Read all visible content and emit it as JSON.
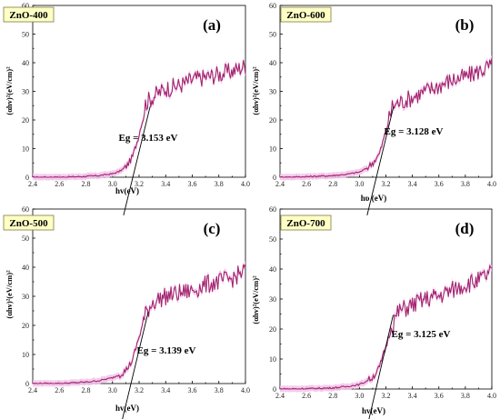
{
  "colors": {
    "curve": "#a3236f",
    "band": "#f2c3ea",
    "label_bg": "#ffffc6",
    "tangent": "#000000"
  },
  "chart_data": [
    {
      "type": "line",
      "panel": "(a)",
      "sample_label": "ZnO-400",
      "xlabel": "hv(eV)",
      "ylabel": "(αhv)²(eV/cm)²",
      "annotation": "Eg = 3.153 eV",
      "eg": 3.153,
      "xlim": [
        2.4,
        4.0
      ],
      "ylim": [
        0,
        60
      ],
      "xticks": [
        "2.4",
        "2.6",
        "2.8",
        "3.0",
        "3.2",
        "3.4",
        "3.6",
        "3.8",
        "4.0"
      ],
      "yticks": [
        "0",
        "10",
        "20",
        "30",
        "40",
        "50",
        "60"
      ],
      "x": [
        2.4,
        2.6,
        2.8,
        2.9,
        3.0,
        3.05,
        3.1,
        3.15,
        3.2,
        3.25,
        3.3,
        3.4,
        3.5,
        3.6,
        3.7,
        3.8,
        3.9,
        4.0
      ],
      "y": [
        0,
        0,
        0.3,
        0.6,
        1.2,
        2,
        3.5,
        7,
        15,
        26,
        28,
        31,
        32,
        34,
        35,
        36,
        37,
        39
      ]
    },
    {
      "type": "line",
      "panel": "(b)",
      "sample_label": "ZnO-600",
      "xlabel": "hυ (eV)",
      "ylabel": "(αhv)²(eV/cm)²",
      "annotation": "Eg = 3.128 eV",
      "eg": 3.128,
      "xlim": [
        2.4,
        4.0
      ],
      "ylim": [
        0,
        60
      ],
      "xticks": [
        "2.4",
        "2.6",
        "2.8",
        "3.0",
        "3.2",
        "3.4",
        "3.6",
        "3.8",
        "4.0"
      ],
      "yticks": [
        "0",
        "10",
        "20",
        "30",
        "40",
        "50",
        "60"
      ],
      "x": [
        2.4,
        2.6,
        2.8,
        2.9,
        3.0,
        3.05,
        3.1,
        3.15,
        3.2,
        3.25,
        3.3,
        3.4,
        3.5,
        3.6,
        3.7,
        3.8,
        3.9,
        4.0
      ],
      "y": [
        0,
        0.2,
        0.6,
        1,
        1.8,
        3,
        5,
        8,
        16,
        25,
        26,
        28,
        30,
        32,
        34,
        35,
        37,
        39
      ]
    },
    {
      "type": "line",
      "panel": "(c)",
      "sample_label": "ZnO-500",
      "xlabel": "hv(eV)",
      "ylabel": "(αhv)²(eV/cm)²",
      "annotation": "Eg = 3.139 eV",
      "eg": 3.139,
      "xlim": [
        2.4,
        4.0
      ],
      "ylim": [
        0,
        60
      ],
      "xticks": [
        "2.4",
        "2.6",
        "2.8",
        "3.0",
        "3.2",
        "3.4",
        "3.6",
        "3.8",
        "4.0"
      ],
      "yticks": [
        "0",
        "10",
        "20",
        "30",
        "40",
        "50",
        "60"
      ],
      "x": [
        2.4,
        2.6,
        2.8,
        2.9,
        3.0,
        3.05,
        3.1,
        3.15,
        3.2,
        3.25,
        3.3,
        3.4,
        3.5,
        3.6,
        3.7,
        3.8,
        3.9,
        4.0
      ],
      "y": [
        0,
        0,
        0.5,
        1,
        2,
        3,
        4.5,
        8,
        16,
        24,
        28,
        30,
        31,
        32,
        34,
        35,
        36,
        39
      ]
    },
    {
      "type": "line",
      "panel": "(d)",
      "sample_label": "ZnO-700",
      "xlabel": "hv(eV)",
      "ylabel": "(αhv)²(eV/cm)²",
      "annotation": "Eg = 3.125 eV",
      "eg": 3.125,
      "xlim": [
        2.4,
        4.0
      ],
      "ylim": [
        0,
        60
      ],
      "xticks": [
        "2.4",
        "2.6",
        "2.8",
        "3.0",
        "3.2",
        "3.4",
        "3.6",
        "3.8",
        "4.0"
      ],
      "yticks": [
        "0",
        "10",
        "20",
        "30",
        "40",
        "50",
        "60"
      ],
      "x": [
        2.4,
        2.6,
        2.8,
        2.9,
        3.0,
        3.05,
        3.1,
        3.15,
        3.2,
        3.25,
        3.3,
        3.4,
        3.5,
        3.6,
        3.7,
        3.8,
        3.9,
        4.0
      ],
      "y": [
        0,
        0.1,
        0.4,
        0.8,
        1.5,
        2.5,
        4,
        7,
        14,
        22,
        26,
        28,
        30,
        31,
        33,
        35,
        36,
        39
      ]
    }
  ]
}
